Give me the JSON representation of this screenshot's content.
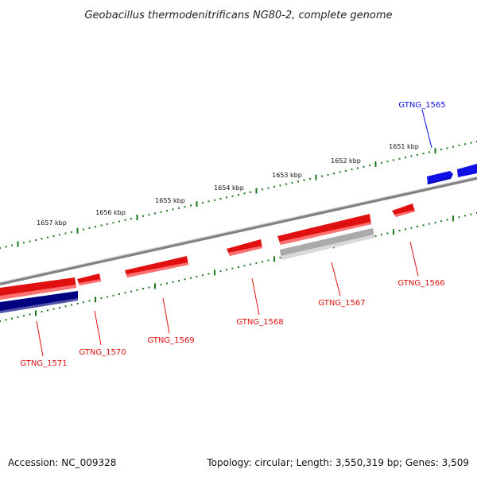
{
  "title": "Geobacillus thermodenitrificans NG80-2, complete genome",
  "ruler_labels": [
    "1651 kbp",
    "1652 kbp",
    "1653 kbp",
    "1654 kbp",
    "1655 kbp",
    "1656 kbp",
    "1657 kbp"
  ],
  "genes": [
    {
      "name": "GTNG_1565",
      "strand": "+",
      "color": "#1010e6"
    },
    {
      "name": "GTNG_1566",
      "strand": "-",
      "color": "#e01010"
    },
    {
      "name": "GTNG_1567",
      "strand": "-",
      "color": "#e01010"
    },
    {
      "name": "GTNG_1568",
      "strand": "-",
      "color": "#e01010"
    },
    {
      "name": "GTNG_1569",
      "strand": "-",
      "color": "#e01010"
    },
    {
      "name": "GTNG_1570",
      "strand": "-",
      "color": "#e01010"
    },
    {
      "name": "GTNG_1571",
      "strand": "-",
      "color": "#e01010"
    }
  ],
  "colors": {
    "forward_cds": "#1010e6",
    "reverse_cds": "#e01010",
    "backbone": "#808080",
    "ruler_ticks": "#1a7a1a",
    "other_feature_grey": "#aaaaaa",
    "other_feature_navy": "#000080"
  },
  "footer": {
    "accession": "Accession: NC_009328",
    "topology": "Topology: circular; Length: 3,550,319 bp; Genes: 3,509"
  }
}
